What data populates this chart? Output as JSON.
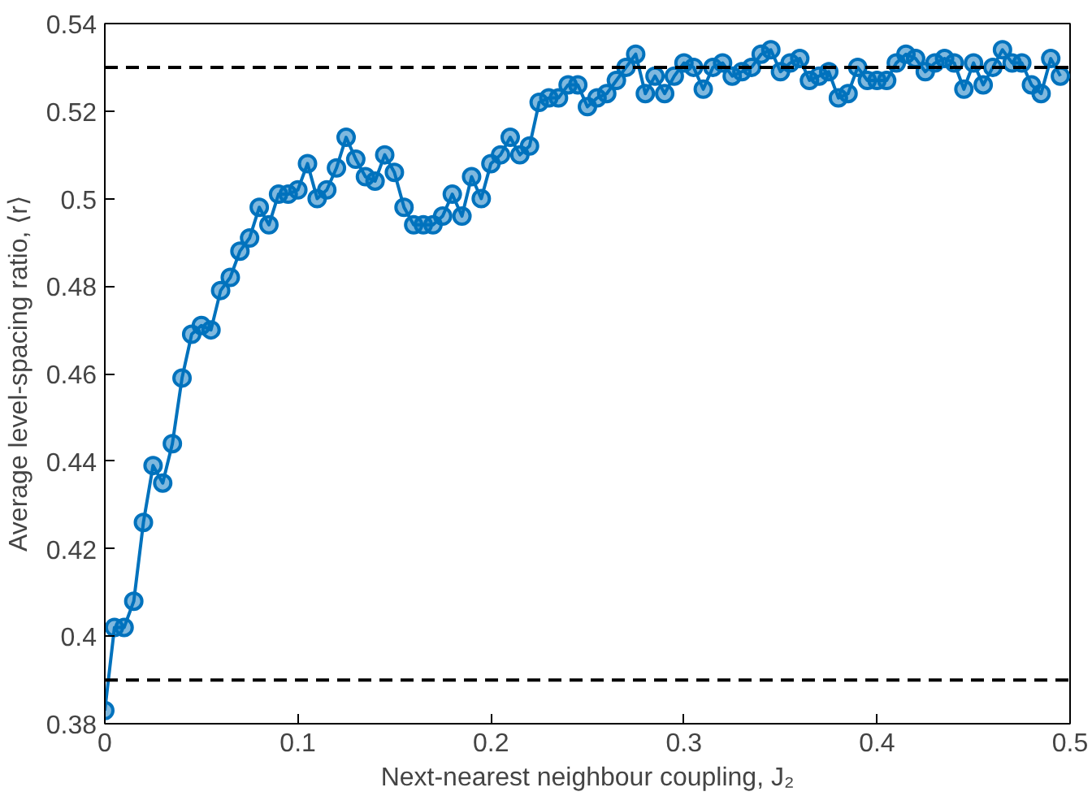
{
  "chart_data": {
    "type": "line",
    "xlabel": "Next-nearest neighbour coupling, J₂",
    "ylabel": "Average level-spacing ratio, ⟨r⟩",
    "xlim": [
      0,
      0.5
    ],
    "ylim": [
      0.38,
      0.54
    ],
    "xticks": [
      0,
      0.1,
      0.2,
      0.3,
      0.4,
      0.5
    ],
    "yticks": [
      0.38,
      0.4,
      0.42,
      0.44,
      0.46,
      0.48,
      0.5,
      0.52,
      0.54
    ],
    "grid": false,
    "marker": "circle",
    "line_style": "solid",
    "x": [
      0,
      0.005,
      0.01,
      0.015,
      0.02,
      0.025,
      0.03,
      0.035,
      0.04,
      0.045,
      0.05,
      0.055,
      0.06,
      0.065,
      0.07,
      0.075,
      0.08,
      0.085,
      0.09,
      0.095,
      0.1,
      0.105,
      0.11,
      0.115,
      0.12,
      0.125,
      0.13,
      0.135,
      0.14,
      0.145,
      0.15,
      0.155,
      0.16,
      0.165,
      0.17,
      0.175,
      0.18,
      0.185,
      0.19,
      0.195,
      0.2,
      0.205,
      0.21,
      0.215,
      0.22,
      0.225,
      0.23,
      0.235,
      0.24,
      0.245,
      0.25,
      0.255,
      0.26,
      0.265,
      0.27,
      0.275,
      0.28,
      0.285,
      0.29,
      0.295,
      0.3,
      0.305,
      0.31,
      0.315,
      0.32,
      0.325,
      0.33,
      0.335,
      0.34,
      0.345,
      0.35,
      0.355,
      0.36,
      0.365,
      0.37,
      0.375,
      0.38,
      0.385,
      0.39,
      0.395,
      0.4,
      0.405,
      0.41,
      0.415,
      0.42,
      0.425,
      0.43,
      0.435,
      0.44,
      0.445,
      0.45,
      0.455,
      0.46,
      0.465,
      0.47,
      0.475,
      0.48,
      0.485,
      0.49,
      0.495
    ],
    "series": [
      {
        "color": "#0072bd",
        "values": [
          0.383,
          0.402,
          0.402,
          0.408,
          0.426,
          0.439,
          0.435,
          0.444,
          0.459,
          0.469,
          0.471,
          0.47,
          0.479,
          0.482,
          0.488,
          0.491,
          0.498,
          0.494,
          0.501,
          0.501,
          0.502,
          0.508,
          0.5,
          0.502,
          0.507,
          0.514,
          0.509,
          0.505,
          0.504,
          0.51,
          0.506,
          0.498,
          0.494,
          0.494,
          0.494,
          0.496,
          0.501,
          0.496,
          0.505,
          0.5,
          0.508,
          0.51,
          0.514,
          0.51,
          0.512,
          0.522,
          0.523,
          0.523,
          0.526,
          0.526,
          0.521,
          0.523,
          0.524,
          0.527,
          0.53,
          0.533,
          0.524,
          0.528,
          0.524,
          0.528,
          0.531,
          0.53,
          0.525,
          0.53,
          0.531,
          0.528,
          0.529,
          0.53,
          0.533,
          0.534,
          0.529,
          0.531,
          0.532,
          0.527,
          0.528,
          0.529,
          0.523,
          0.524,
          0.53,
          0.527,
          0.527,
          0.527,
          0.531,
          0.533,
          0.532,
          0.529,
          0.531,
          0.532,
          0.531,
          0.525,
          0.531,
          0.526,
          0.53,
          0.534,
          0.531,
          0.531,
          0.526,
          0.524,
          0.532,
          0.528
        ]
      }
    ],
    "ref_lines": [
      {
        "axis": "y",
        "value": 0.53,
        "color": "#000000",
        "line_style": "dashed"
      },
      {
        "axis": "y",
        "value": 0.39,
        "color": "#000000",
        "line_style": "dashed"
      }
    ]
  }
}
